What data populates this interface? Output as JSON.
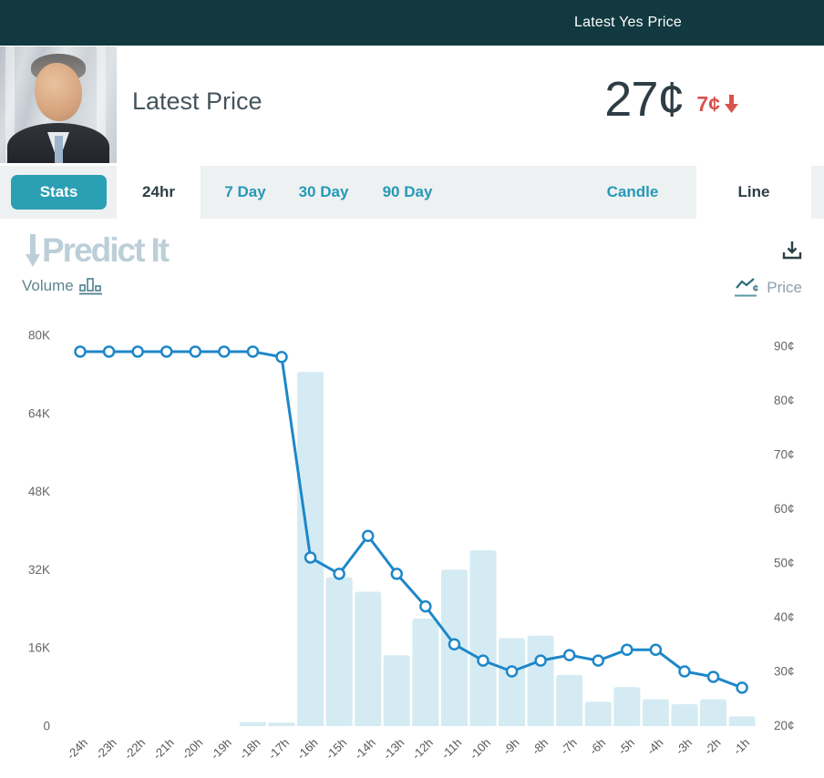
{
  "topbar": {
    "title": "Latest Yes Price",
    "bg": "#11393f"
  },
  "header": {
    "title": "Latest Price",
    "price": "27¢",
    "change": "7¢",
    "change_direction": "down",
    "avatar": "portrait-photo"
  },
  "tabs": {
    "stats": "Stats",
    "time": [
      "24hr",
      "7 Day",
      "30 Day",
      "90 Day"
    ],
    "active_time": "24hr",
    "style": [
      "Candle",
      "Line"
    ],
    "active_style": "Line"
  },
  "logo": {
    "part1": "Predict",
    "part2": "It"
  },
  "legend": {
    "volume": "Volume",
    "price": "Price"
  },
  "icons": {
    "download": "tray-arrow-down-icon",
    "volume": "bar-chart-icon",
    "price": "line-chart-cent-icon",
    "change": "red-arrow-down-icon",
    "logo_arrow": "down-arrow-icon"
  },
  "colors": {
    "topbar_bg": "#11393f",
    "accent_teal": "#2599b7",
    "stats_button": "#2ba0b4",
    "negative_red": "#d9534f",
    "price_line": "#1e87c9",
    "volume_bar": "#d5ebf3",
    "axis_text": "#666666",
    "watermark": "#bccfd8"
  },
  "chart_data": {
    "type": "line+bar",
    "title": "Latest Yes Price – 24hr",
    "x": [
      "-24h",
      "-23h",
      "-22h",
      "-21h",
      "-20h",
      "-19h",
      "-18h",
      "-17h",
      "-16h",
      "-15h",
      "-14h",
      "-13h",
      "-12h",
      "-11h",
      "-10h",
      "-9h",
      "-8h",
      "-7h",
      "-6h",
      "-5h",
      "-4h",
      "-3h",
      "-2h",
      "-1h"
    ],
    "series": [
      {
        "name": "Price",
        "render": "line",
        "unit": "¢",
        "values": [
          89,
          89,
          89,
          89,
          89,
          89,
          89,
          88,
          51,
          48,
          55,
          48,
          42,
          35,
          32,
          30,
          32,
          33,
          32,
          34,
          34,
          30,
          29,
          27
        ]
      },
      {
        "name": "Volume",
        "render": "bar",
        "unit": "K",
        "values": [
          0,
          0,
          0,
          0,
          0,
          0,
          0.8,
          0.7,
          72.5,
          30.5,
          27.5,
          14.5,
          22,
          32,
          36,
          18,
          18.5,
          10.5,
          5,
          8,
          5.5,
          4.5,
          5.5,
          2
        ]
      }
    ],
    "left_axis": {
      "label": "Volume",
      "range_k": [
        0,
        80
      ],
      "ticks": [
        {
          "label": "80K",
          "v": 80
        },
        {
          "label": "64K",
          "v": 64
        },
        {
          "label": "48K",
          "v": 48
        },
        {
          "label": "32K",
          "v": 32
        },
        {
          "label": "16K",
          "v": 16
        },
        {
          "label": "0",
          "v": 0
        }
      ]
    },
    "right_axis": {
      "label": "Price",
      "range_cents": [
        20,
        90
      ],
      "ticks": [
        {
          "label": "90¢",
          "v": 90
        },
        {
          "label": "80¢",
          "v": 80
        },
        {
          "label": "70¢",
          "v": 70
        },
        {
          "label": "60¢",
          "v": 60
        },
        {
          "label": "50¢",
          "v": 50
        },
        {
          "label": "40¢",
          "v": 40
        },
        {
          "label": "30¢",
          "v": 30
        },
        {
          "label": "20¢",
          "v": 20
        }
      ]
    },
    "grid": "off",
    "legend_position": "top: Volume left, Price right"
  }
}
